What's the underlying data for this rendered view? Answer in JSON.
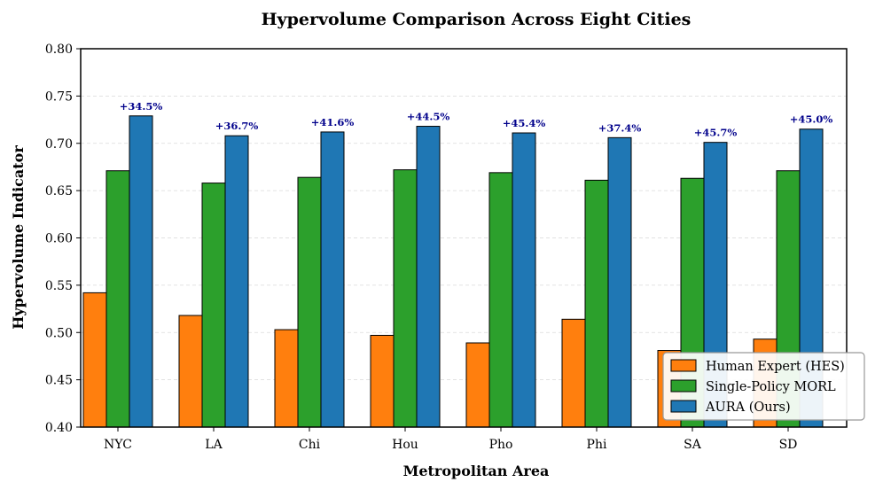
{
  "chart_data": {
    "type": "bar",
    "title": "Hypervolume Comparison Across Eight Cities",
    "xlabel": "Metropolitan Area",
    "ylabel": "Hypervolume Indicator",
    "categories": [
      "NYC",
      "LA",
      "Chi",
      "Hou",
      "Pho",
      "Phi",
      "SA",
      "SD"
    ],
    "ylim": [
      0.4,
      0.8
    ],
    "yticks": [
      "0.40",
      "0.45",
      "0.50",
      "0.55",
      "0.60",
      "0.65",
      "0.70",
      "0.75",
      "0.80"
    ],
    "grid": true,
    "legend_position": "bottom-right",
    "series": [
      {
        "name": "Human Expert (HES)",
        "color": "#ff7f0e",
        "values": [
          0.542,
          0.518,
          0.503,
          0.497,
          0.489,
          0.514,
          0.481,
          0.493
        ]
      },
      {
        "name": "Single-Policy MORL",
        "color": "#2ca02c",
        "values": [
          0.671,
          0.658,
          0.664,
          0.672,
          0.669,
          0.661,
          0.663,
          0.671
        ]
      },
      {
        "name": "AURA (Ours)",
        "color": "#1f77b4",
        "values": [
          0.729,
          0.708,
          0.712,
          0.718,
          0.711,
          0.706,
          0.701,
          0.715
        ]
      }
    ],
    "annotations": [
      "+34.5%",
      "+36.7%",
      "+41.6%",
      "+44.5%",
      "+45.4%",
      "+37.4%",
      "+45.7%",
      "+45.0%"
    ]
  }
}
